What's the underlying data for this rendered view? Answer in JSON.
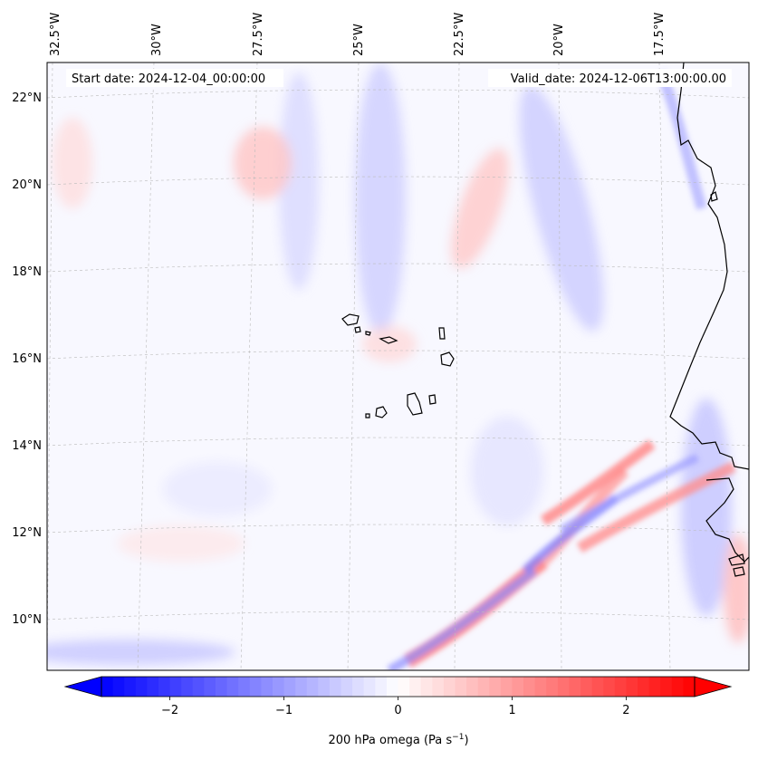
{
  "header": {
    "start_date": "Start date: 2024-12-04_00:00:00",
    "valid_date": "Valid_date: 2024-12-06T13:00:00.00"
  },
  "map": {
    "lon_labels": [
      "32.5°W",
      "30°W",
      "27.5°W",
      "25°W",
      "22.5°W",
      "20°W",
      "17.5°W"
    ],
    "lat_labels": [
      "22°N",
      "20°N",
      "18°N",
      "16°N",
      "14°N",
      "12°N",
      "10°N"
    ]
  },
  "colorbar": {
    "ticks": [
      "−2",
      "−1",
      "0",
      "1",
      "2"
    ],
    "tick_values": [
      -2,
      -1,
      0,
      1,
      2
    ],
    "range": [
      -2.6,
      2.6
    ],
    "label": "200 hPa omega (Pa s",
    "label_exp": "−1",
    "label_close": ")",
    "colors": {
      "negative": "#0000ff",
      "zero": "#ffffff",
      "positive": "#ff0000"
    }
  }
}
